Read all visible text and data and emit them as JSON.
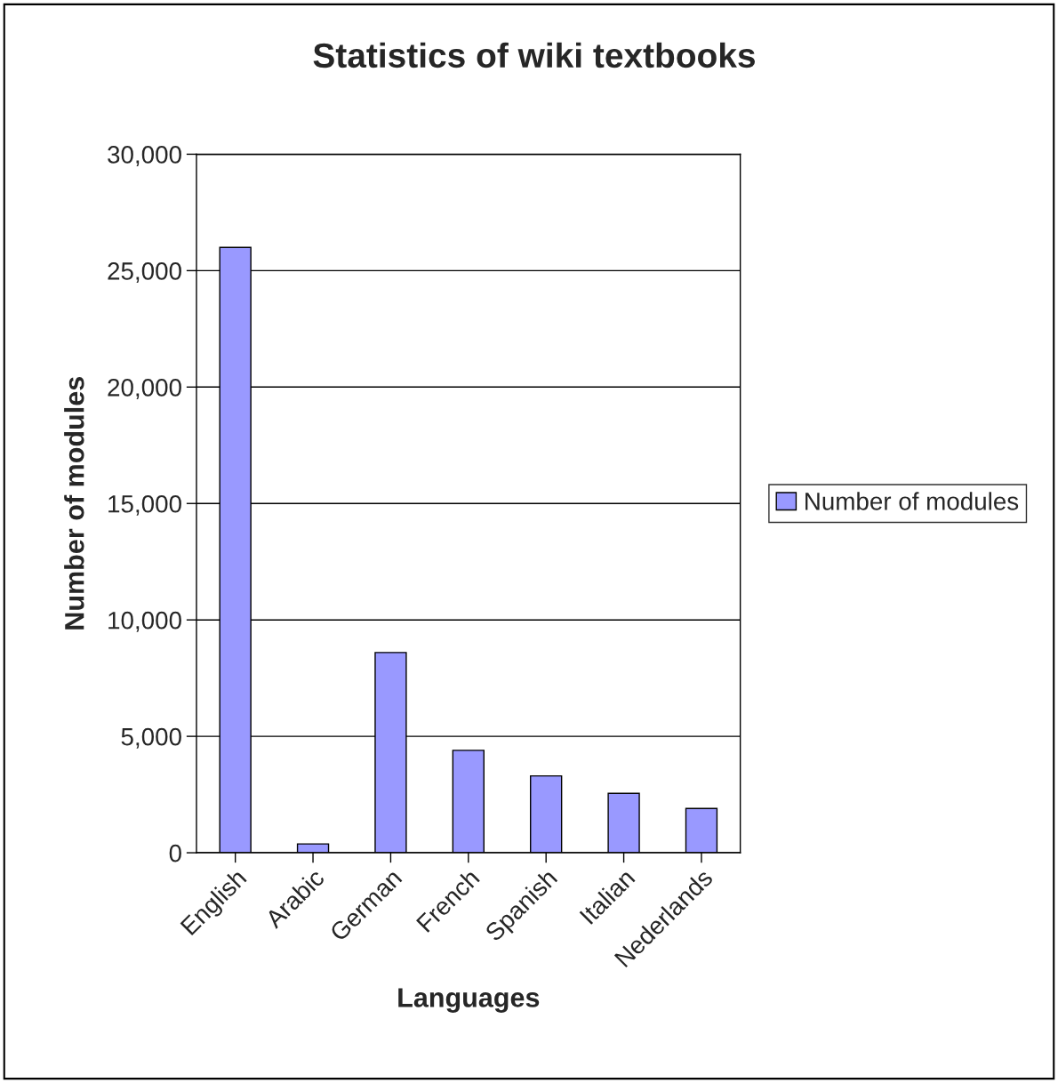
{
  "chart_data": {
    "type": "bar",
    "title": "Statistics of wiki textbooks",
    "xlabel": "Languages",
    "ylabel": "Number of modules",
    "categories": [
      "English",
      "Arabic",
      "German",
      "French",
      "Spanish",
      "Italian",
      "Nederlands"
    ],
    "series": [
      {
        "name": "Number of modules",
        "color": "#9999ff",
        "values": [
          26000,
          380,
          8600,
          4400,
          3300,
          2550,
          1900
        ]
      }
    ],
    "ylim": [
      0,
      30000
    ],
    "yticks": [
      {
        "value": 0,
        "label": "0"
      },
      {
        "value": 5000,
        "label": "5,000"
      },
      {
        "value": 10000,
        "label": "10,000"
      },
      {
        "value": 15000,
        "label": "15,000"
      },
      {
        "value": 20000,
        "label": "20,000"
      },
      {
        "value": 25000,
        "label": "25,000"
      },
      {
        "value": 30000,
        "label": "30,000"
      }
    ],
    "grid": "y",
    "legend": "right"
  }
}
